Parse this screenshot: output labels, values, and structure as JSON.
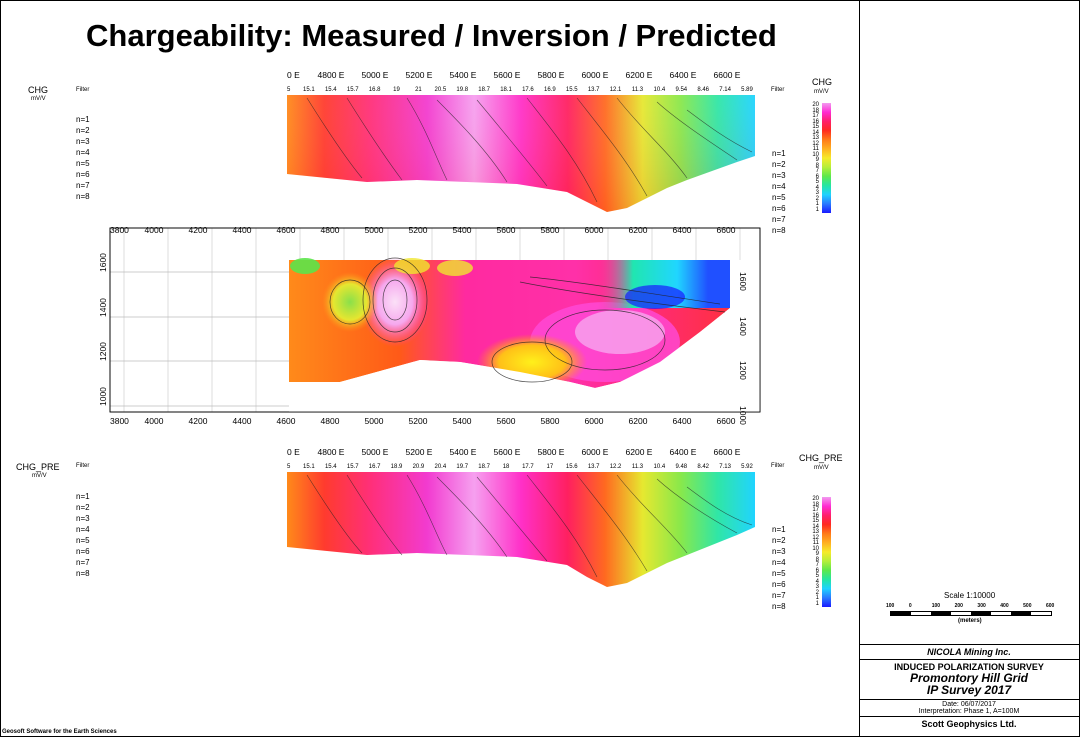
{
  "title": "Chargeability: Measured / Inversion / Predicted",
  "pseudo_top": {
    "label": "CHG",
    "unit": "mV/V",
    "filter_label": "Filter",
    "station_ticks": [
      "0 E",
      "4800 E",
      "5000 E",
      "5200 E",
      "5400 E",
      "5600 E",
      "5800 E",
      "6000 E",
      "6200 E",
      "6400 E",
      "6600 E"
    ],
    "filter_values": [
      "5",
      "15.1",
      "15.4",
      "15.7",
      "16.8",
      "19",
      "21",
      "20.5",
      "19.8",
      "18.7",
      "18.1",
      "17.6",
      "16.9",
      "15.5",
      "13.7",
      "12.1",
      "11.3",
      "10.4",
      "9.54",
      "8.46",
      "7.14",
      "5.89"
    ],
    "n_left": [
      "n=1",
      "n=2",
      "n=3",
      "n=4",
      "n=5",
      "n=6",
      "n=7",
      "n=8"
    ],
    "n_right": [
      "n=1",
      "n=2",
      "n=3",
      "n=4",
      "n=5",
      "n=6",
      "n=7",
      "n=8"
    ],
    "colorbar_label": "CHG",
    "colorbar_unit": "mV/V",
    "colorbar_values": [
      "20",
      "18",
      "17",
      "16",
      "15",
      "14",
      "13",
      "12",
      "11",
      "10",
      "9",
      "8",
      "7",
      "6",
      "5",
      "4",
      "3",
      "2",
      "1",
      "1"
    ]
  },
  "inversion": {
    "x_ticks": [
      "3800",
      "4000",
      "4200",
      "4400",
      "4600",
      "4800",
      "5000",
      "5200",
      "5400",
      "5600",
      "5800",
      "6000",
      "6200",
      "6400",
      "6600"
    ],
    "y_ticks_left": [
      "1600",
      "1400",
      "1200",
      "1000"
    ],
    "y_ticks_right": [
      "1600",
      "1400",
      "1200",
      "1000"
    ]
  },
  "pseudo_bottom": {
    "label": "CHG_PRE",
    "unit": "mV/V",
    "filter_label": "Filter",
    "station_ticks": [
      "0 E",
      "4800 E",
      "5000 E",
      "5200 E",
      "5400 E",
      "5600 E",
      "5800 E",
      "6000 E",
      "6200 E",
      "6400 E",
      "6600 E"
    ],
    "filter_values": [
      "5",
      "15.1",
      "15.4",
      "15.7",
      "16.7",
      "18.9",
      "20.9",
      "20.4",
      "19.7",
      "18.7",
      "18",
      "17.7",
      "17",
      "15.6",
      "13.7",
      "12.2",
      "11.3",
      "10.4",
      "9.48",
      "8.42",
      "7.13",
      "5.92"
    ],
    "n_left": [
      "n=1",
      "n=2",
      "n=3",
      "n=4",
      "n=5",
      "n=6",
      "n=7",
      "n=8"
    ],
    "n_right": [
      "n=1",
      "n=2",
      "n=3",
      "n=4",
      "n=5",
      "n=6",
      "n=7",
      "n=8"
    ],
    "colorbar_label": "CHG_PRE",
    "colorbar_unit": "mV/V",
    "colorbar_values": [
      "20",
      "18",
      "17",
      "16",
      "15",
      "14",
      "13",
      "12",
      "11",
      "10",
      "9",
      "8",
      "7",
      "6",
      "5",
      "4",
      "3",
      "2",
      "1",
      "1"
    ]
  },
  "scale": {
    "label": "Scale 1:10000",
    "ticks": [
      "100",
      "0",
      "100",
      "200",
      "300",
      "400",
      "500",
      "600"
    ],
    "unit": "(meters)"
  },
  "title_block": {
    "company": "NICOLA Mining Inc.",
    "survey": "INDUCED POLARIZATION SURVEY",
    "grid": "Promontory Hill Grid",
    "name": "IP Survey 2017",
    "date": "Date: 06/07/2017",
    "interp": "Interpretation: Phase 1, A=100M",
    "contractor": "Scott Geophysics Ltd."
  },
  "footer": "Geosoft Software for the Earth Sciences"
}
